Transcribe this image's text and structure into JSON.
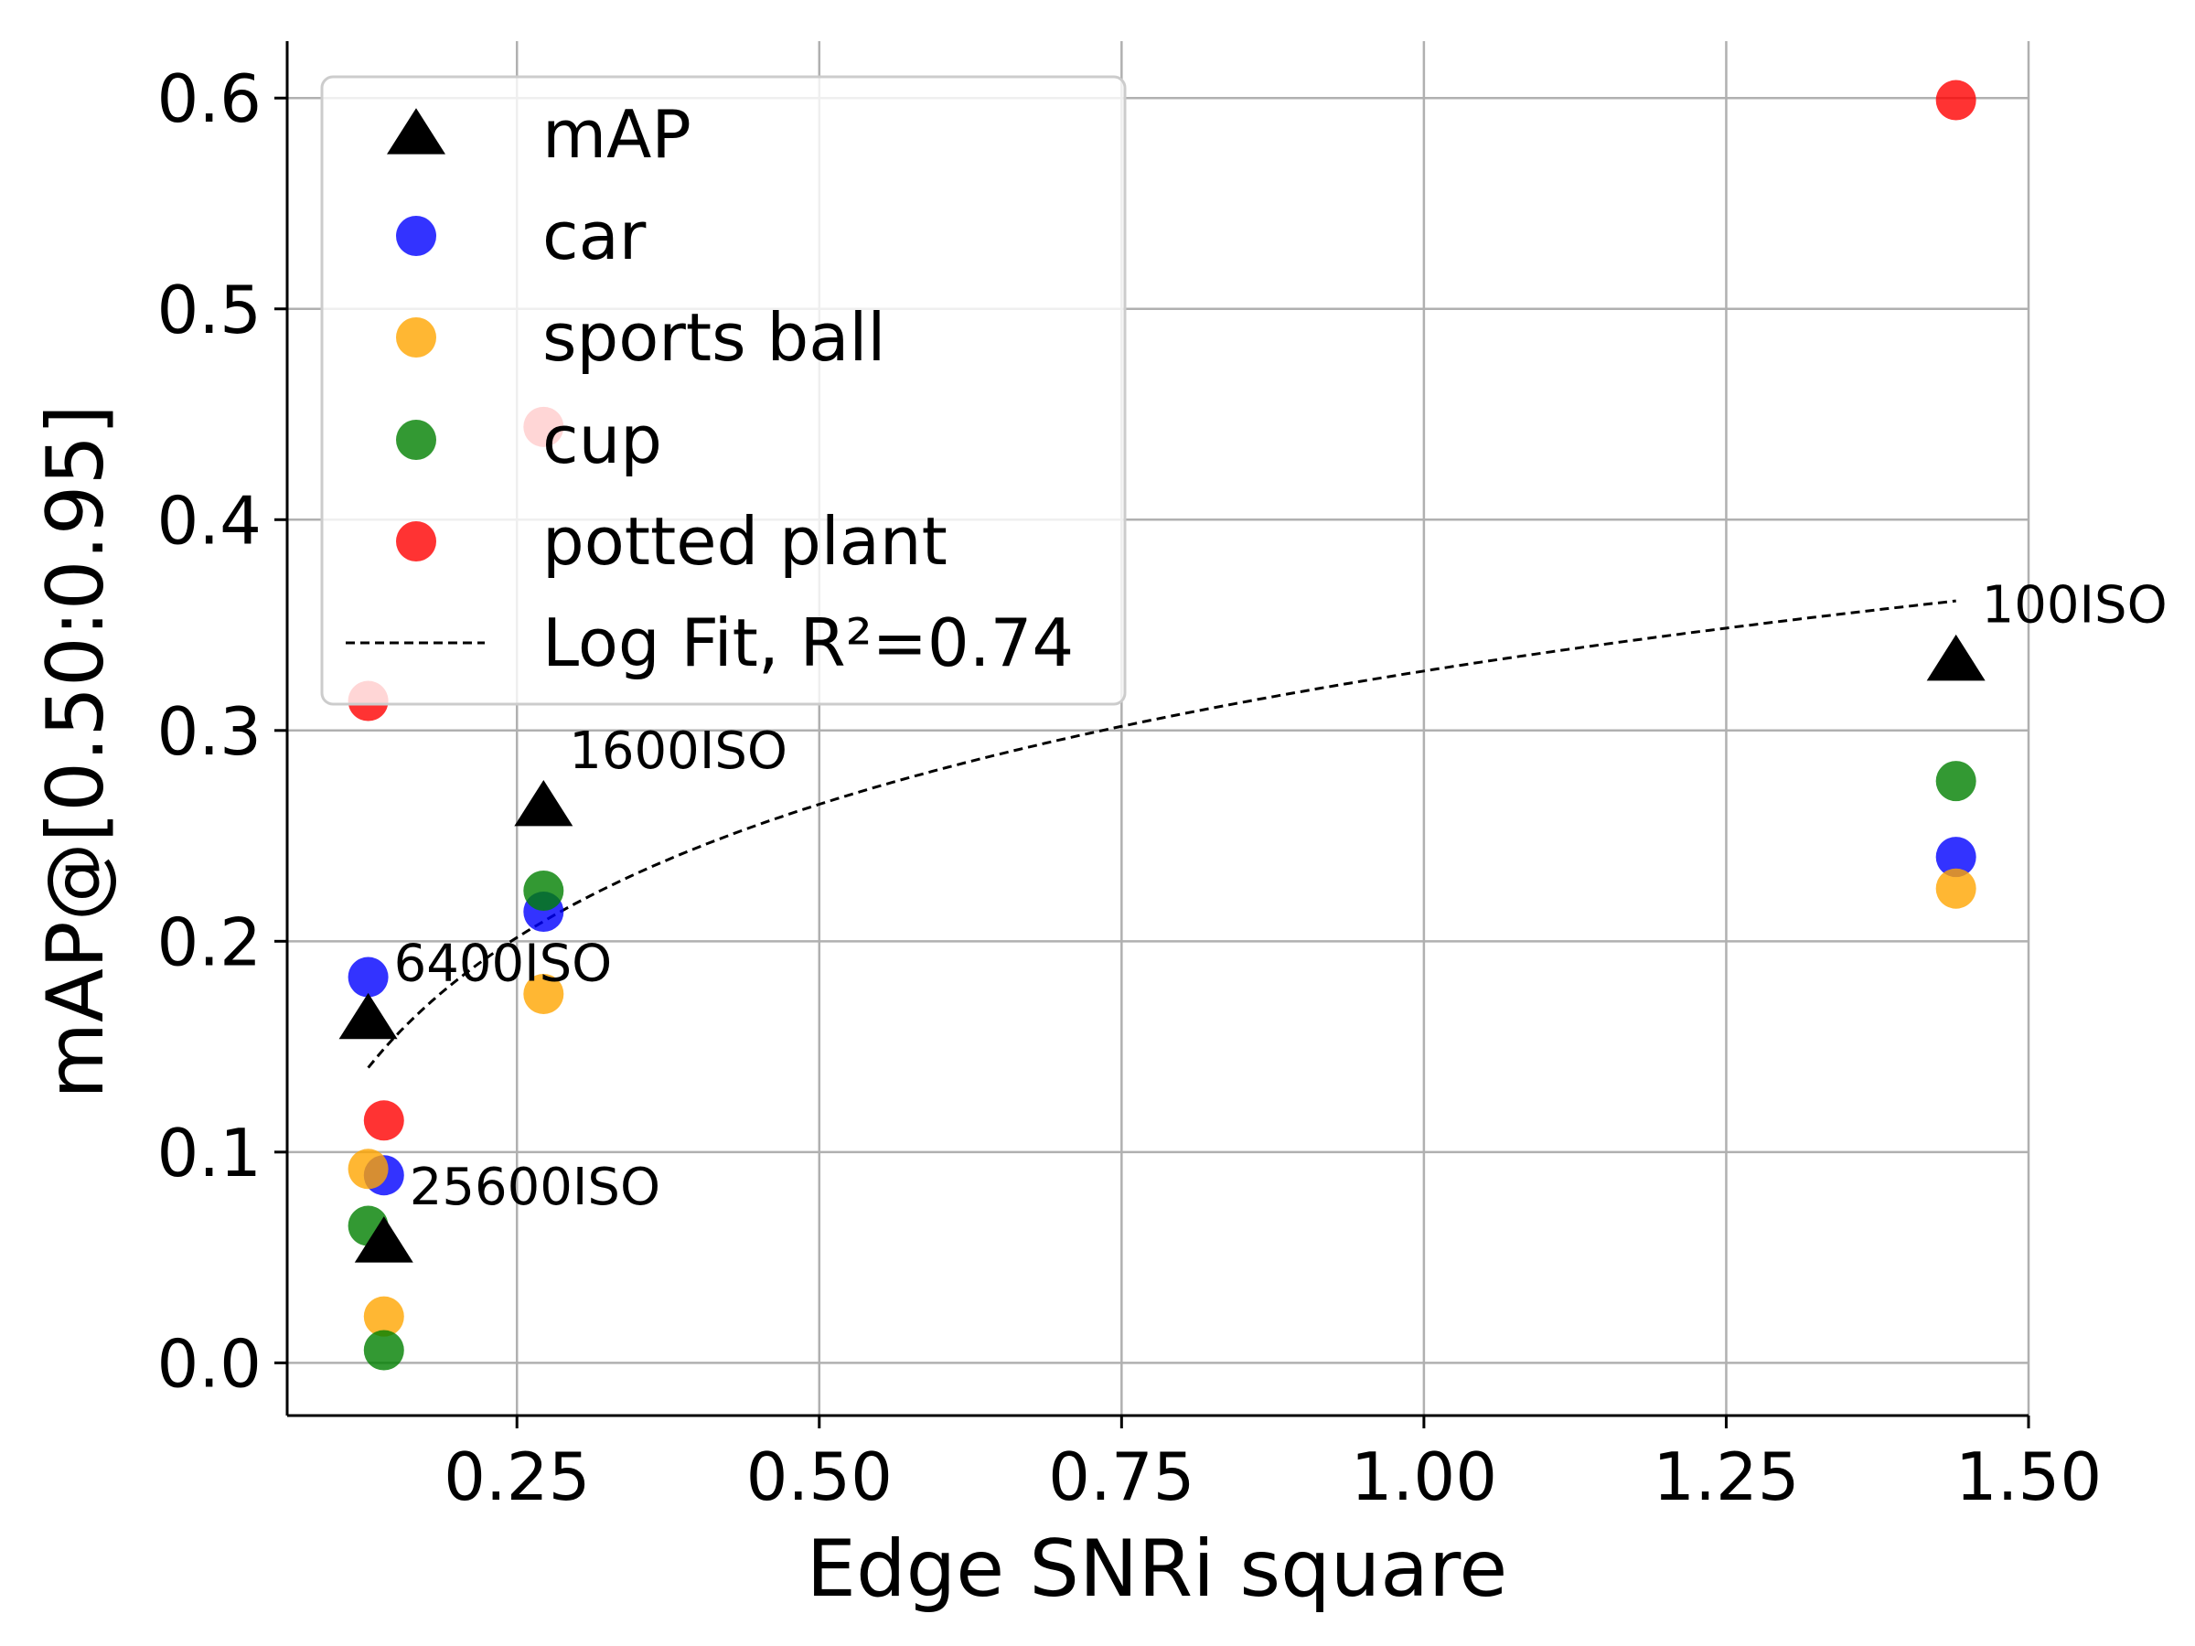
{
  "chart_data": {
    "type": "scatter",
    "xlabel": "Edge SNRi square",
    "ylabel": "mAP@[0.50:0.95]",
    "xlim": [
      0.06,
      1.5
    ],
    "ylim": [
      -0.025,
      0.627
    ],
    "xticks": [
      0.25,
      0.5,
      0.75,
      1.0,
      1.25,
      1.5
    ],
    "xtick_labels": [
      "0.25",
      "0.50",
      "0.75",
      "1.00",
      "1.25",
      "1.50"
    ],
    "yticks": [
      0.0,
      0.1,
      0.2,
      0.3,
      0.4,
      0.5,
      0.6
    ],
    "ytick_labels": [
      "0.0",
      "0.1",
      "0.2",
      "0.3",
      "0.4",
      "0.5",
      "0.6"
    ],
    "grid": true,
    "legend_position": "top-left",
    "series": [
      {
        "name": "mAP",
        "marker": "triangle",
        "color": "#000000",
        "x": [
          1.44,
          0.272,
          0.127,
          0.14
        ],
        "y": [
          0.333,
          0.264,
          0.163,
          0.057
        ]
      },
      {
        "name": "car",
        "marker": "circle",
        "color": "#0000ff",
        "x": [
          1.44,
          0.272,
          0.127,
          0.14
        ],
        "y": [
          0.24,
          0.214,
          0.183,
          0.089
        ]
      },
      {
        "name": "sports ball",
        "marker": "circle",
        "color": "#ffa500",
        "x": [
          1.44,
          0.272,
          0.127,
          0.14
        ],
        "y": [
          0.225,
          0.175,
          0.092,
          0.022
        ]
      },
      {
        "name": "cup",
        "marker": "circle",
        "color": "#008000",
        "x": [
          1.44,
          0.272,
          0.127,
          0.14
        ],
        "y": [
          0.276,
          0.224,
          0.065,
          0.006
        ]
      },
      {
        "name": "potted plant",
        "marker": "circle",
        "color": "#ff0000",
        "x": [
          1.44,
          0.272,
          0.127,
          0.14
        ],
        "y": [
          0.599,
          0.444,
          0.314,
          0.115
        ]
      }
    ],
    "fit": {
      "name": "Log Fit, R²=0.74",
      "style": "dashed",
      "color": "#000000",
      "a": 0.3282,
      "b": 0.0912,
      "x_range": [
        0.127,
        1.44
      ]
    },
    "annotations": [
      {
        "text": "100ISO",
        "x": 1.44,
        "y": 0.333
      },
      {
        "text": "1600ISO",
        "x": 0.272,
        "y": 0.264
      },
      {
        "text": "6400ISO",
        "x": 0.127,
        "y": 0.163
      },
      {
        "text": "25600ISO",
        "x": 0.14,
        "y": 0.057
      }
    ]
  }
}
